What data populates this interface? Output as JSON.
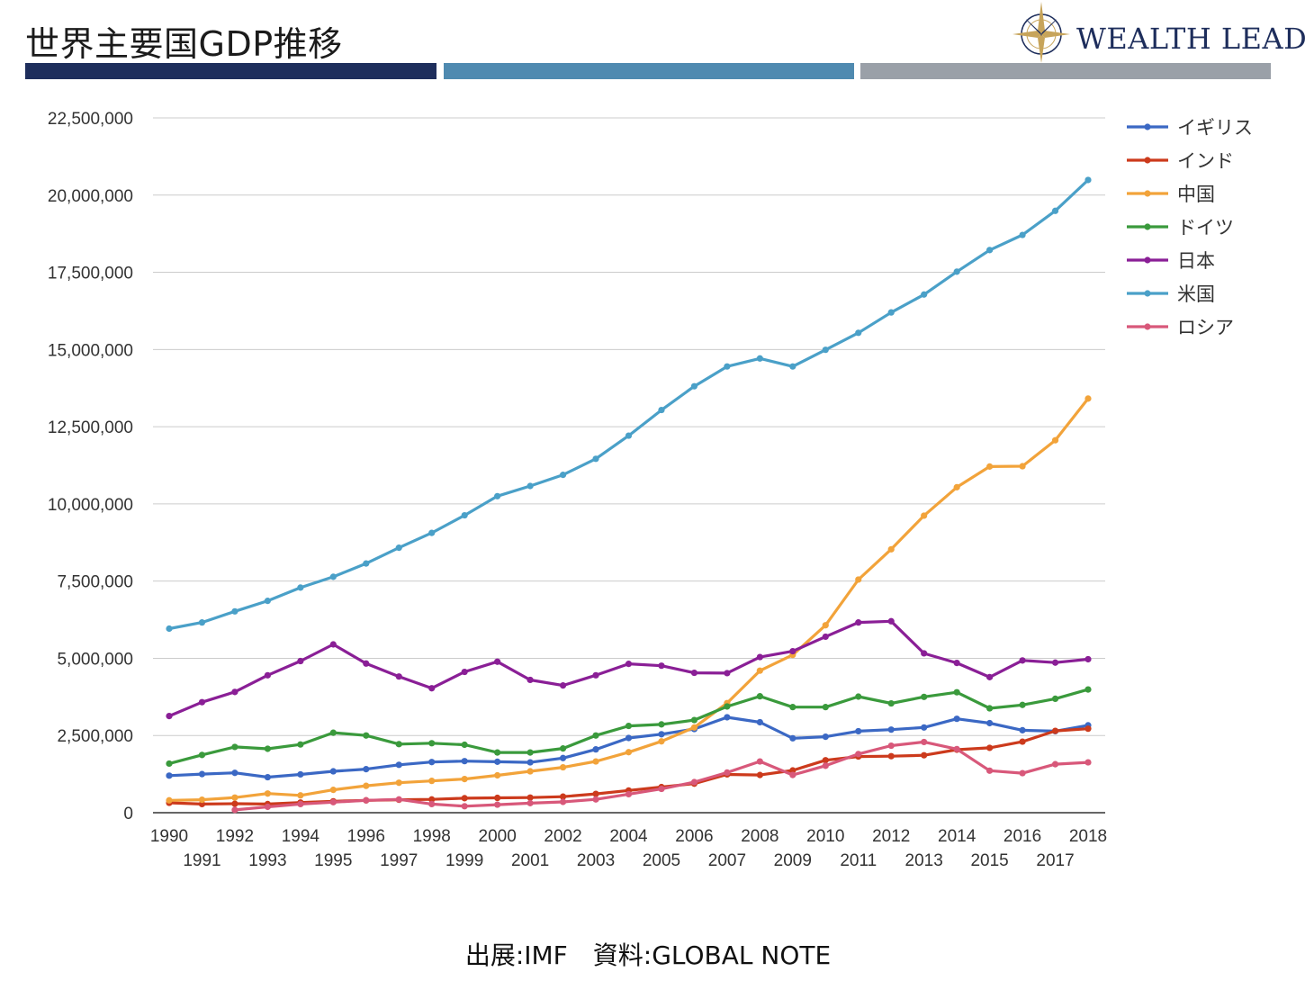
{
  "header": {
    "title": "世界主要国GDP推移",
    "logo_text": "WEALTH LEAD",
    "bar_colors": [
      "#1e2e5c",
      "#4f8ab0",
      "#9aa0a8"
    ]
  },
  "footer": {
    "source": "出展:IMF　資料:GLOBAL NOTE"
  },
  "chart_data": {
    "type": "line",
    "x": [
      1990,
      1991,
      1992,
      1993,
      1994,
      1995,
      1996,
      1997,
      1998,
      1999,
      2000,
      2001,
      2002,
      2003,
      2004,
      2005,
      2006,
      2007,
      2008,
      2009,
      2010,
      2011,
      2012,
      2013,
      2014,
      2015,
      2016,
      2017,
      2018
    ],
    "x_tick_labels_top": [
      "1990",
      "1992",
      "1994",
      "1996",
      "1998",
      "2000",
      "2002",
      "2004",
      "2006",
      "2008",
      "2010",
      "2012",
      "2014",
      "2016",
      "2018"
    ],
    "x_tick_labels_bottom": [
      "1991",
      "1993",
      "1995",
      "1997",
      "1999",
      "2001",
      "2003",
      "2005",
      "2007",
      "2009",
      "2011",
      "2013",
      "2015",
      "2017"
    ],
    "y_ticks": [
      0,
      2500000,
      5000000,
      7500000,
      10000000,
      12500000,
      15000000,
      17500000,
      20000000,
      22500000
    ],
    "y_tick_labels": [
      "0",
      "2,500,000",
      "5,000,000",
      "7,500,000",
      "10,000,000",
      "12,500,000",
      "15,000,000",
      "17,500,000",
      "20,000,000",
      "22,500,000"
    ],
    "ylim": [
      0,
      22500000
    ],
    "grid": true,
    "legend": "right",
    "series": [
      {
        "name": "イギリス",
        "color": "#3b68c4",
        "values": [
          1200000,
          1250000,
          1290000,
          1150000,
          1240000,
          1340000,
          1410000,
          1550000,
          1640000,
          1670000,
          1650000,
          1630000,
          1770000,
          2050000,
          2420000,
          2540000,
          2710000,
          3090000,
          2930000,
          2410000,
          2460000,
          2640000,
          2690000,
          2760000,
          3040000,
          2900000,
          2670000,
          2640000,
          2830000
        ]
      },
      {
        "name": "インド",
        "color": "#cc3a1c",
        "values": [
          320000,
          280000,
          290000,
          280000,
          330000,
          370000,
          400000,
          420000,
          430000,
          470000,
          480000,
          490000,
          520000,
          610000,
          720000,
          830000,
          940000,
          1240000,
          1220000,
          1370000,
          1700000,
          1820000,
          1830000,
          1860000,
          2040000,
          2100000,
          2300000,
          2650000,
          2720000
        ]
      },
      {
        "name": "中国",
        "color": "#f2a33a",
        "values": [
          400000,
          420000,
          490000,
          620000,
          560000,
          740000,
          870000,
          970000,
          1030000,
          1090000,
          1210000,
          1340000,
          1470000,
          1660000,
          1960000,
          2310000,
          2760000,
          3550000,
          4600000,
          5110000,
          6070000,
          7550000,
          8530000,
          9620000,
          10540000,
          11210000,
          11220000,
          12060000,
          13410000
        ]
      },
      {
        "name": "ドイツ",
        "color": "#3a9a3c",
        "values": [
          1590000,
          1870000,
          2130000,
          2070000,
          2210000,
          2590000,
          2500000,
          2220000,
          2250000,
          2200000,
          1950000,
          1950000,
          2080000,
          2500000,
          2810000,
          2860000,
          3000000,
          3440000,
          3770000,
          3420000,
          3420000,
          3760000,
          3540000,
          3750000,
          3900000,
          3380000,
          3490000,
          3690000,
          3990000
        ]
      },
      {
        "name": "日本",
        "color": "#8a1f96",
        "values": [
          3130000,
          3580000,
          3910000,
          4450000,
          4910000,
          5450000,
          4830000,
          4410000,
          4030000,
          4560000,
          4890000,
          4300000,
          4120000,
          4450000,
          4820000,
          4760000,
          4530000,
          4520000,
          5040000,
          5230000,
          5700000,
          6160000,
          6200000,
          5160000,
          4850000,
          4390000,
          4930000,
          4860000,
          4970000
        ]
      },
      {
        "name": "米国",
        "color": "#4aa0c8",
        "values": [
          5960000,
          6160000,
          6520000,
          6860000,
          7290000,
          7640000,
          8070000,
          8580000,
          9060000,
          9630000,
          10250000,
          10580000,
          10940000,
          11460000,
          12210000,
          13040000,
          13810000,
          14450000,
          14710000,
          14450000,
          14990000,
          15540000,
          16200000,
          16780000,
          17520000,
          18220000,
          18710000,
          19490000,
          20490000
        ]
      },
      {
        "name": "ロシア",
        "color": "#d8587a",
        "values": [
          null,
          null,
          90000,
          190000,
          280000,
          340000,
          400000,
          430000,
          280000,
          210000,
          260000,
          310000,
          350000,
          430000,
          600000,
          770000,
          990000,
          1300000,
          1660000,
          1220000,
          1520000,
          1900000,
          2170000,
          2290000,
          2060000,
          1360000,
          1280000,
          1570000,
          1630000
        ]
      }
    ]
  }
}
